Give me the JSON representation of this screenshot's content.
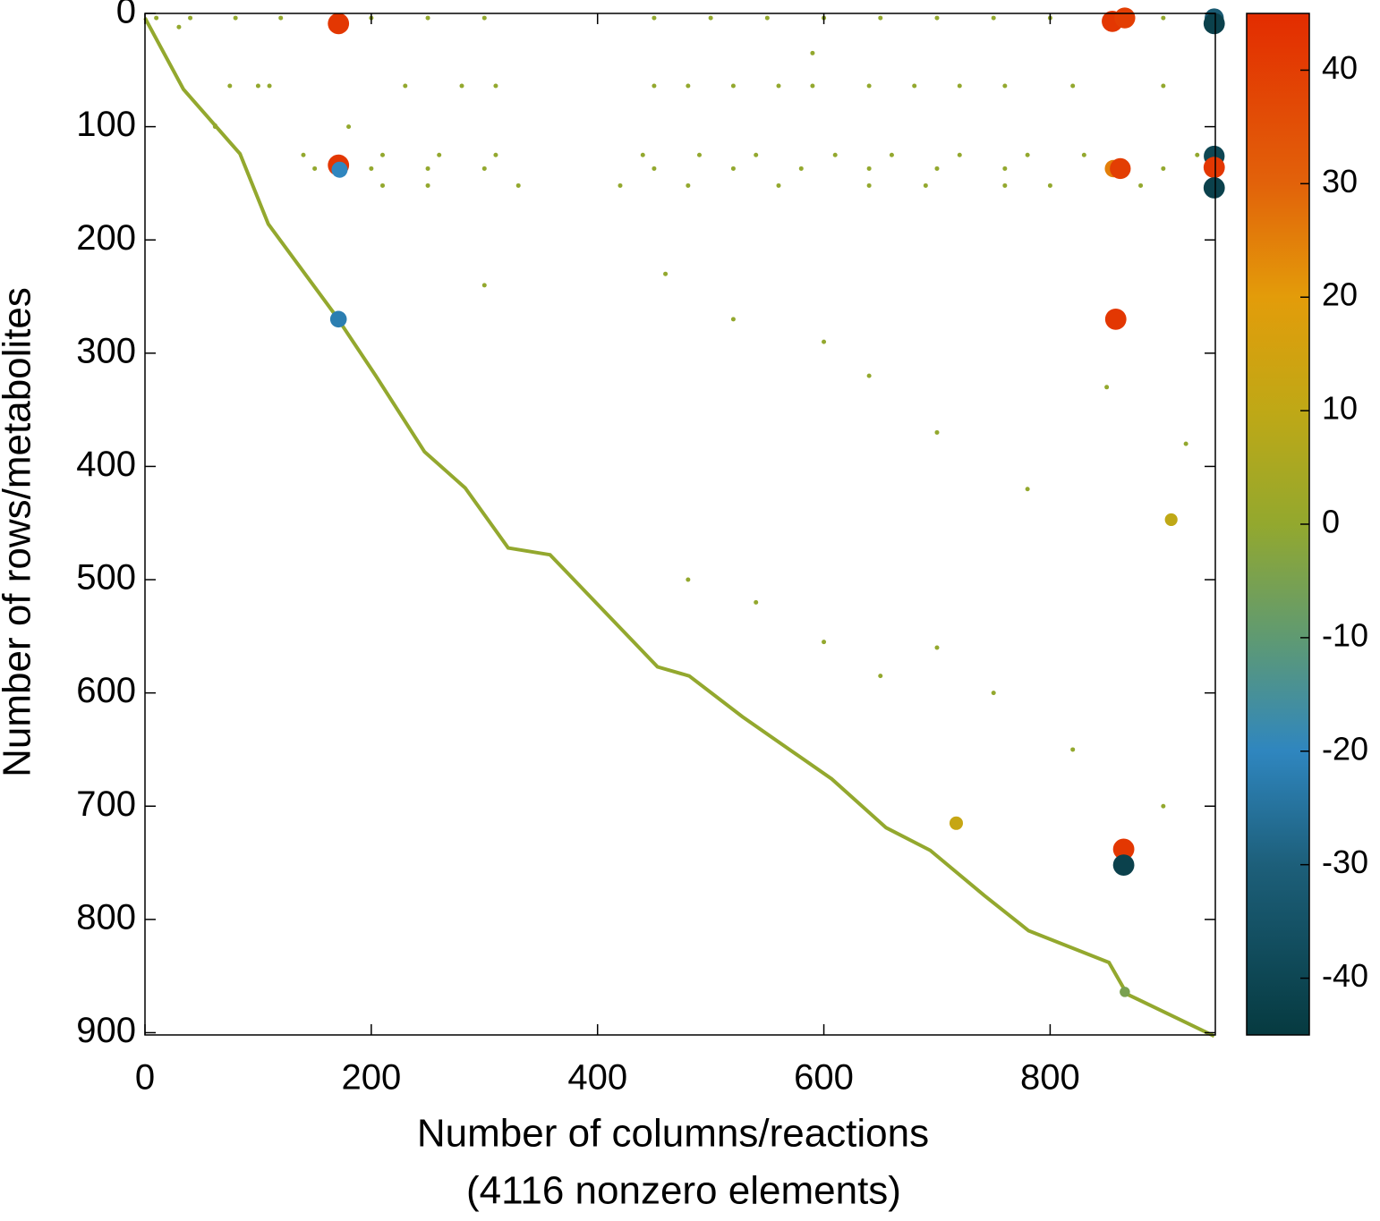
{
  "chart_data": {
    "type": "scatter",
    "xlabel": "Number of columns/reactions",
    "xlabel2": "(4116 nonzero elements)",
    "ylabel": "Number of rows/metabolites",
    "xlim": [
      0,
      946
    ],
    "ylim": [
      902,
      0
    ],
    "xticks": [
      0,
      200,
      400,
      600,
      800
    ],
    "yticks": [
      0,
      100,
      200,
      300,
      400,
      500,
      600,
      700,
      800,
      900
    ],
    "clim": [
      -45,
      45
    ],
    "cticks": [
      -40,
      -30,
      -20,
      -10,
      0,
      10,
      20,
      30,
      40
    ],
    "colormap": [
      {
        "value": -45,
        "color": "#063a40"
      },
      {
        "value": -30,
        "color": "#1d5f7a"
      },
      {
        "value": -20,
        "color": "#2f86bf"
      },
      {
        "value": -10,
        "color": "#5f9a72"
      },
      {
        "value": 0,
        "color": "#93a82e"
      },
      {
        "value": 10,
        "color": "#bfa816"
      },
      {
        "value": 20,
        "color": "#e39c0a"
      },
      {
        "value": 30,
        "color": "#e2620a"
      },
      {
        "value": 45,
        "color": "#e32c00"
      }
    ],
    "staircase": {
      "x": [
        0,
        34,
        84,
        109,
        168,
        204,
        247,
        283,
        321,
        358,
        453,
        481,
        528,
        607,
        655,
        694,
        742,
        781,
        852,
        868,
        945
      ],
      "y": [
        4,
        67,
        124,
        186,
        266,
        320,
        387,
        419,
        472,
        478,
        577,
        585,
        621,
        676,
        719,
        739,
        779,
        810,
        838,
        866,
        903
      ]
    },
    "points": {
      "x": [
        10,
        40,
        80,
        120,
        200,
        250,
        300,
        450,
        500,
        550,
        600,
        650,
        700,
        750,
        800,
        900,
        62,
        75,
        100,
        110,
        180,
        230,
        280,
        310,
        450,
        480,
        520,
        560,
        590,
        640,
        680,
        720,
        760,
        820,
        900,
        30,
        62,
        140,
        210,
        260,
        310,
        440,
        490,
        540,
        610,
        660,
        720,
        780,
        830,
        930,
        150,
        200,
        250,
        300,
        450,
        520,
        580,
        640,
        700,
        760,
        900,
        210,
        250,
        330,
        420,
        480,
        560,
        640,
        690,
        760,
        800,
        880,
        300,
        460,
        520,
        600,
        640,
        700,
        780,
        850,
        920,
        600,
        650,
        480,
        540,
        700,
        750,
        820,
        900,
        590,
        171,
        945,
        855,
        866,
        945,
        945,
        171,
        172,
        856,
        862,
        945,
        945,
        945,
        171,
        858,
        865,
        865,
        866,
        907,
        717,
        907
      ],
      "y": [
        4,
        4,
        4,
        4,
        4,
        4,
        4,
        4,
        4,
        4,
        4,
        4,
        4,
        4,
        4,
        4,
        100,
        64,
        64,
        64,
        100,
        64,
        64,
        64,
        64,
        64,
        64,
        64,
        64,
        64,
        64,
        64,
        64,
        64,
        64,
        12,
        99,
        125,
        125,
        125,
        125,
        125,
        125,
        125,
        125,
        125,
        125,
        125,
        125,
        125,
        137,
        137,
        137,
        137,
        137,
        137,
        137,
        137,
        137,
        137,
        137,
        152,
        152,
        152,
        152,
        152,
        152,
        152,
        152,
        152,
        152,
        152,
        240,
        230,
        270,
        290,
        320,
        370,
        420,
        330,
        380,
        555,
        585,
        500,
        520,
        560,
        600,
        650,
        700,
        35,
        9,
        4,
        7,
        4,
        4,
        9,
        134,
        138,
        137,
        137,
        126,
        136,
        154,
        270,
        270,
        738,
        752,
        864,
        447,
        715,
        138
      ],
      "c": [
        0,
        0,
        0,
        0,
        0,
        0,
        0,
        0,
        0,
        0,
        0,
        0,
        0,
        0,
        0,
        0,
        0,
        0,
        0,
        0,
        0,
        0,
        0,
        0,
        0,
        0,
        0,
        0,
        0,
        0,
        0,
        0,
        0,
        0,
        0,
        0,
        0,
        0,
        0,
        0,
        0,
        0,
        0,
        0,
        0,
        0,
        0,
        0,
        0,
        0,
        0,
        0,
        0,
        0,
        0,
        0,
        0,
        0,
        0,
        0,
        0,
        0,
        0,
        0,
        0,
        0,
        0,
        0,
        0,
        0,
        0,
        0,
        0,
        0,
        0,
        0,
        0,
        0,
        0,
        0,
        0,
        0,
        0,
        0,
        0,
        0,
        0,
        0,
        0,
        0,
        42,
        28,
        42,
        40,
        -32,
        -42,
        42,
        -20,
        25,
        40,
        -40,
        42,
        -42,
        -22,
        42,
        42,
        -42,
        -5,
        10,
        12
      ]
    }
  }
}
